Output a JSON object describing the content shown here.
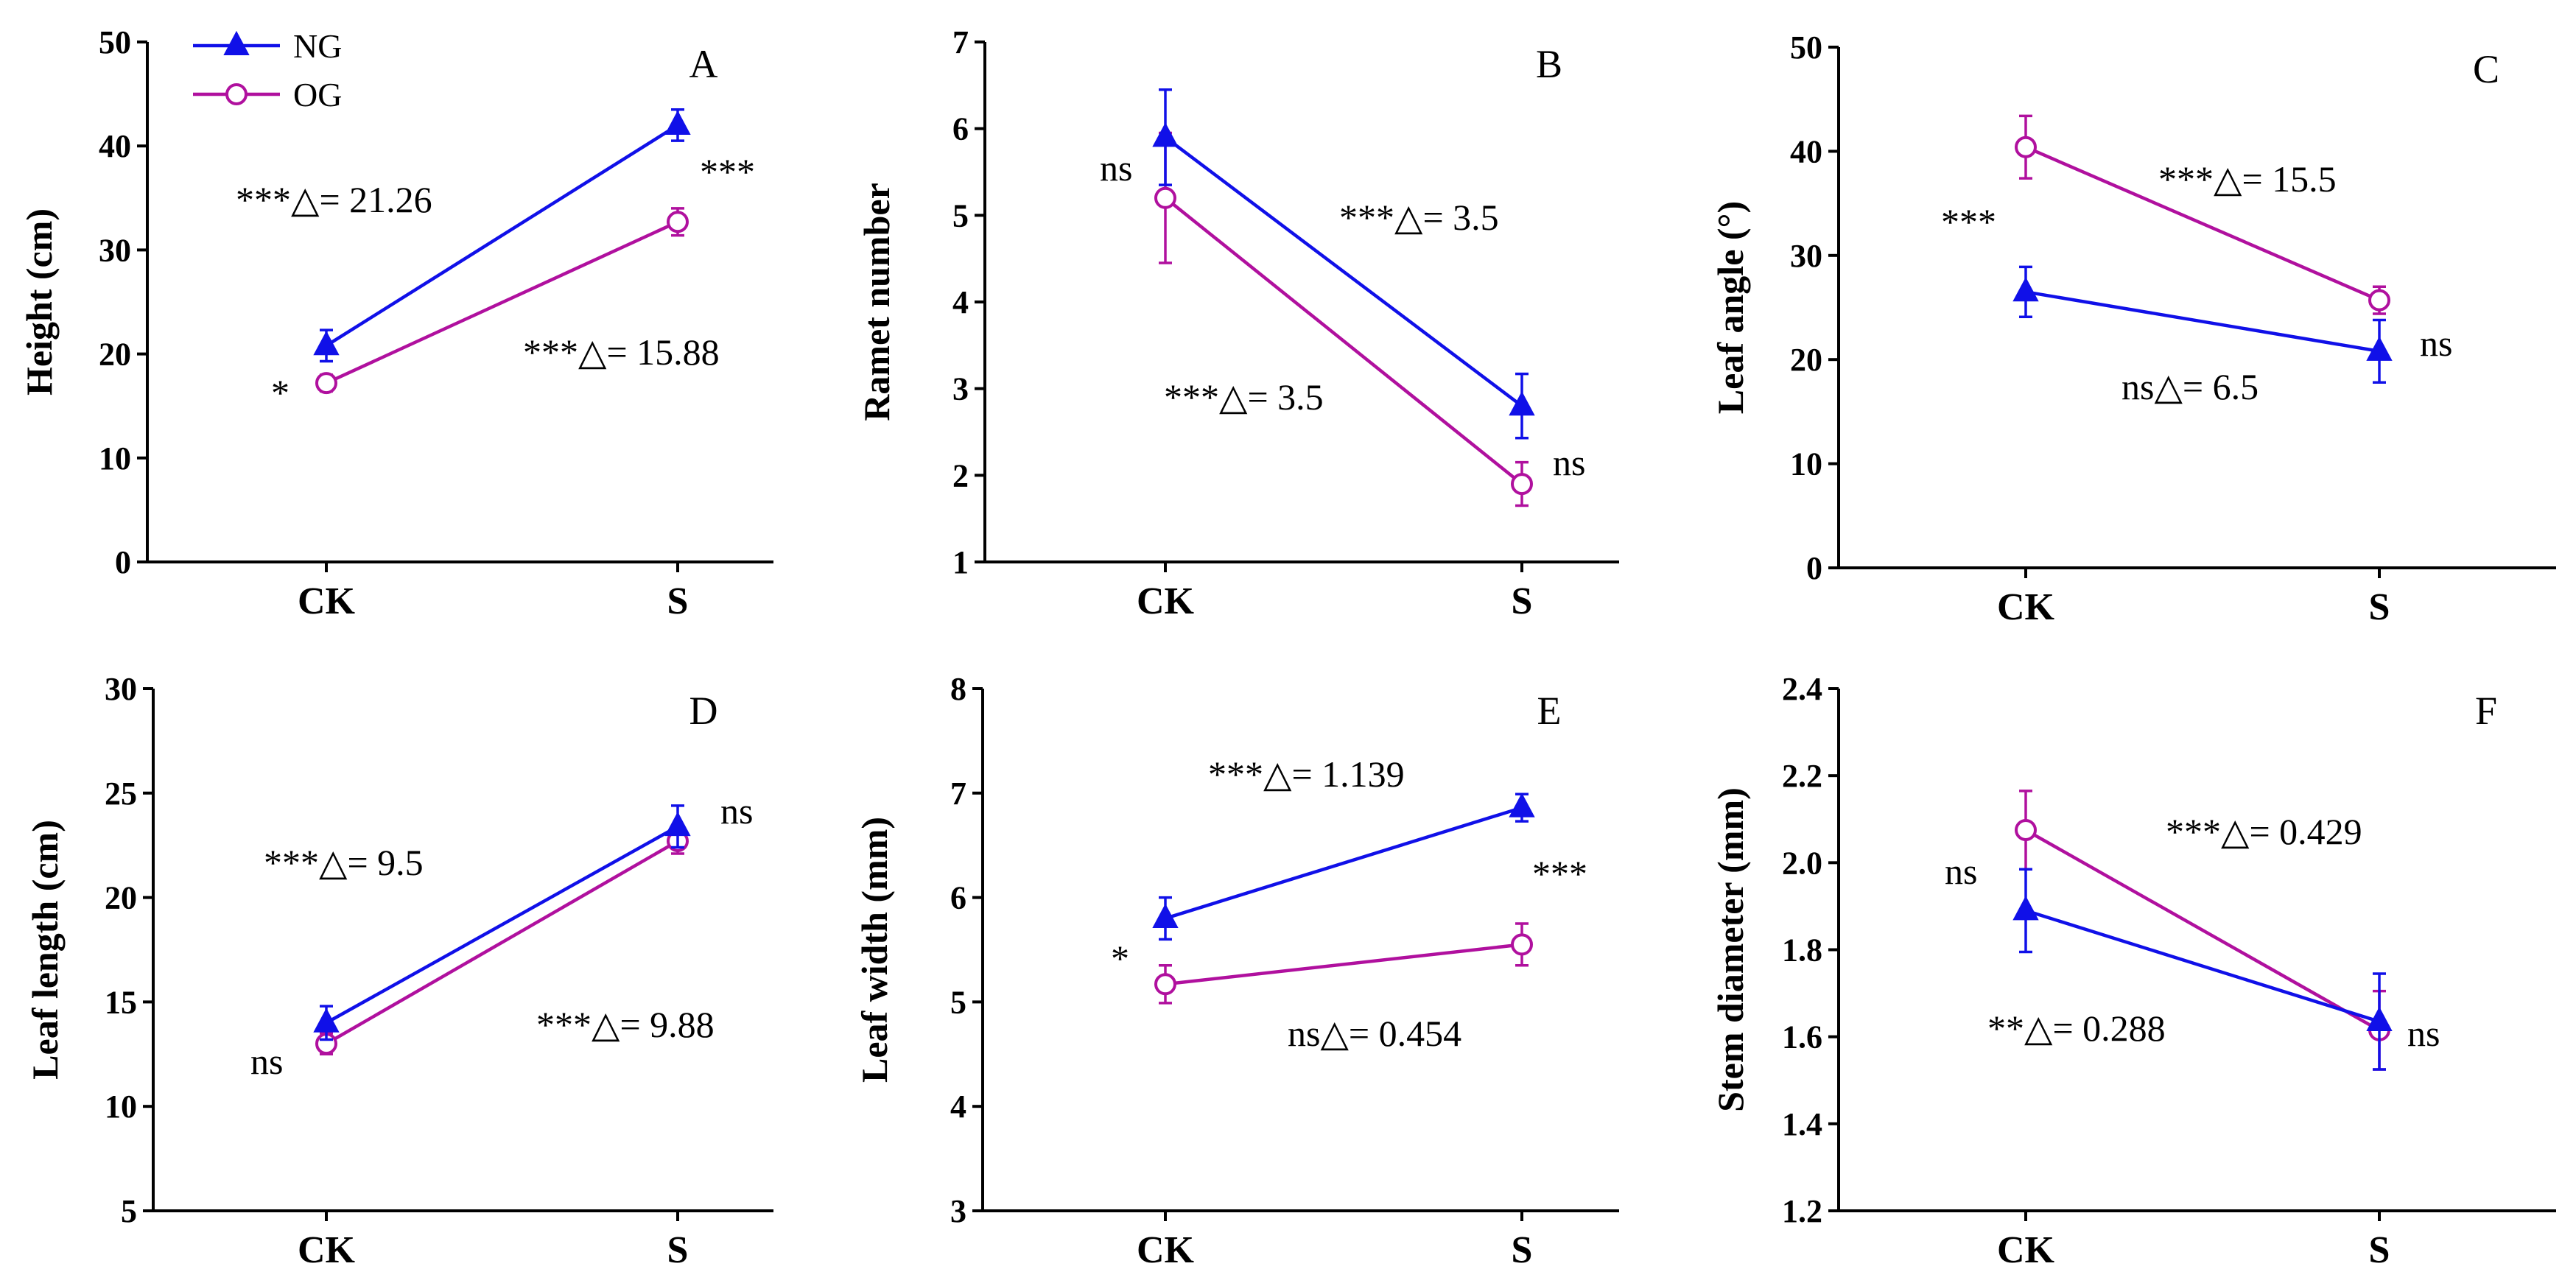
{
  "colors": {
    "NG": "#1010e8",
    "OG": "#b0109e",
    "axis": "#000000"
  },
  "legend": [
    {
      "name": "NG",
      "marker": "filled-triangle"
    },
    {
      "name": "OG",
      "marker": "open-circle"
    }
  ],
  "chart_data": [
    {
      "panel": "A",
      "type": "line",
      "categories": [
        "CK",
        "S"
      ],
      "ylabel": "Height (cm)",
      "ylim": [
        0,
        50
      ],
      "yticks": [
        "0",
        "10",
        "20",
        "30",
        "40",
        "50"
      ],
      "series": [
        {
          "name": "NG",
          "values": [
            20.8,
            42.0
          ],
          "errors": [
            1.5,
            1.5
          ]
        },
        {
          "name": "OG",
          "values": [
            17.2,
            32.7
          ],
          "errors": [
            0.8,
            1.3
          ]
        }
      ],
      "annotations": [
        "***△= 21.26",
        "***△= 15.88",
        "*",
        "***"
      ]
    },
    {
      "panel": "B",
      "type": "line",
      "categories": [
        "CK",
        "S"
      ],
      "ylabel": "Ramet number",
      "ylim": [
        1,
        7
      ],
      "yticks": [
        "1",
        "2",
        "3",
        "4",
        "5",
        "6",
        "7"
      ],
      "series": [
        {
          "name": "NG",
          "values": [
            5.9,
            2.8
          ],
          "errors": [
            0.55,
            0.37
          ]
        },
        {
          "name": "OG",
          "values": [
            5.2,
            1.9
          ],
          "errors": [
            0.75,
            0.25
          ]
        }
      ],
      "annotations": [
        "ns",
        "***△= 3.5",
        "***△= 3.5",
        "ns"
      ]
    },
    {
      "panel": "C",
      "type": "line",
      "categories": [
        "CK",
        "S"
      ],
      "ylabel": "Leaf angle (°)",
      "ylim": [
        0,
        50
      ],
      "yticks": [
        "0",
        "10",
        "20",
        "30",
        "40",
        "50"
      ],
      "series": [
        {
          "name": "NG",
          "values": [
            26.5,
            20.8
          ],
          "errors": [
            2.4,
            3.0
          ]
        },
        {
          "name": "OG",
          "values": [
            40.4,
            25.7
          ],
          "errors": [
            3.0,
            1.3
          ]
        }
      ],
      "annotations": [
        "***",
        "***△= 15.5",
        "ns△= 6.5",
        "ns"
      ]
    },
    {
      "panel": "D",
      "type": "line",
      "categories": [
        "CK",
        "S"
      ],
      "ylabel": "Leaf length (cm)",
      "ylim": [
        5,
        30
      ],
      "yticks": [
        "5",
        "10",
        "15",
        "20",
        "25",
        "30"
      ],
      "series": [
        {
          "name": "NG",
          "values": [
            14.0,
            23.4
          ],
          "errors": [
            0.8,
            1.0
          ]
        },
        {
          "name": "OG",
          "values": [
            13.0,
            22.7
          ],
          "errors": [
            0.5,
            0.6
          ]
        }
      ],
      "annotations": [
        "***△= 9.5",
        "***△= 9.88",
        "ns",
        "ns"
      ]
    },
    {
      "panel": "E",
      "type": "line",
      "categories": [
        "CK",
        "S"
      ],
      "ylabel": "Leaf width (mm)",
      "ylim": [
        3,
        8
      ],
      "yticks": [
        "3",
        "4",
        "5",
        "6",
        "7",
        "8"
      ],
      "series": [
        {
          "name": "NG",
          "values": [
            5.8,
            6.86
          ],
          "errors": [
            0.2,
            0.13
          ]
        },
        {
          "name": "OG",
          "values": [
            5.17,
            5.55
          ],
          "errors": [
            0.18,
            0.2
          ]
        }
      ],
      "annotations": [
        "***△= 1.139",
        "***",
        "*",
        "ns△= 0.454"
      ]
    },
    {
      "panel": "F",
      "type": "line",
      "categories": [
        "CK",
        "S"
      ],
      "ylabel": "Stem diameter (mm)",
      "ylim": [
        1.2,
        2.4
      ],
      "yticks": [
        "1.2",
        "1.4",
        "1.6",
        "1.8",
        "2.0",
        "2.2",
        "2.4"
      ],
      "series": [
        {
          "name": "NG",
          "values": [
            1.89,
            1.635
          ],
          "errors": [
            0.095,
            0.11
          ]
        },
        {
          "name": "OG",
          "values": [
            2.075,
            1.615
          ],
          "errors": [
            0.09,
            0.09
          ]
        }
      ],
      "annotations": [
        "ns",
        "***△= 0.429",
        "**△= 0.288",
        "ns"
      ]
    }
  ]
}
